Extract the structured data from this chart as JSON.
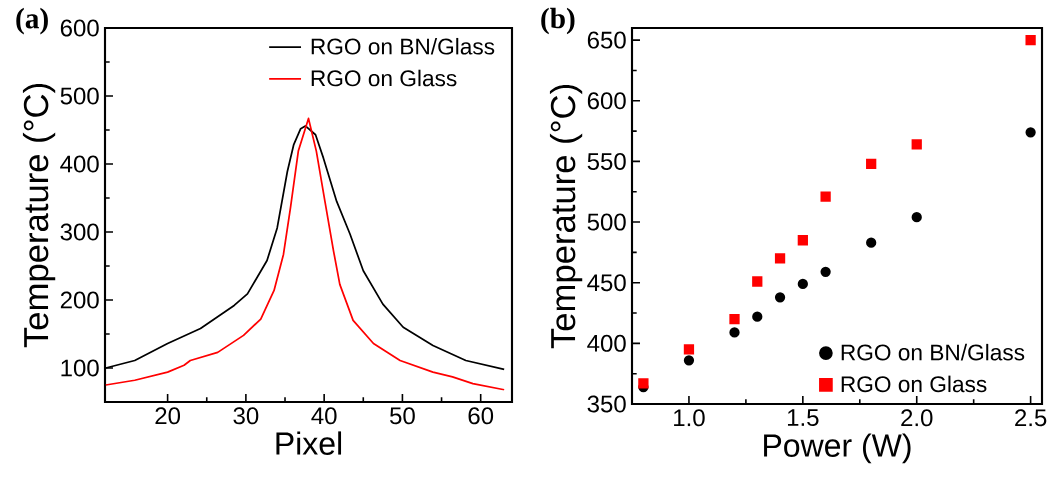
{
  "chart_data": [
    {
      "type": "line",
      "title": "(a)",
      "xlabel": "Pixel",
      "ylabel": "Temperature (°C)",
      "xlim": [
        12,
        64
      ],
      "ylim": [
        50,
        600
      ],
      "xticks": [
        20,
        30,
        40,
        50,
        60
      ],
      "yticks": [
        100,
        200,
        300,
        400,
        500,
        600
      ],
      "legend": "top right",
      "grid": false,
      "series": [
        {
          "name": "RGO on BN/Glass",
          "color": "#000000",
          "x": [
            12.1,
            15.8,
            20,
            24.2,
            28.5,
            30.2,
            32.7,
            34,
            35.3,
            36.1,
            37,
            37.6,
            38.9,
            39.9,
            41.6,
            43.3,
            45,
            47.5,
            50.1,
            53.9,
            58.1,
            63
          ],
          "values": [
            100,
            111,
            136,
            158,
            192,
            209,
            258,
            306,
            389,
            428,
            452,
            456,
            443,
            409,
            345,
            297,
            243,
            194,
            160,
            133,
            111,
            98
          ]
        },
        {
          "name": "RGO on Glass",
          "color": "#ff0000",
          "x": [
            12.1,
            15.8,
            20,
            22.1,
            22.9,
            26.4,
            29.7,
            31.9,
            33.6,
            34.8,
            35.7,
            36.7,
            38,
            39,
            40.1,
            41.2,
            42,
            43.7,
            46.3,
            49.7,
            53.9,
            56.4,
            59,
            63
          ],
          "values": [
            75,
            82,
            94,
            104,
            111,
            123,
            148,
            172,
            214,
            267,
            336,
            419,
            467,
            419,
            345,
            272,
            223,
            170,
            136,
            111,
            94,
            87,
            77,
            68
          ]
        }
      ]
    },
    {
      "type": "scatter",
      "title": "(b)",
      "xlabel": "Power (W)",
      "ylabel": "Temperature (°C)",
      "xlim": [
        0.75,
        2.55
      ],
      "ylim": [
        350,
        660
      ],
      "xticks": [
        {
          "value": 1,
          "label": "1.0"
        },
        1.5,
        {
          "value": 2,
          "label": "2.0"
        },
        2.5
      ],
      "yticks": [
        350,
        400,
        450,
        500,
        550,
        600,
        650
      ],
      "legend": "bottom right",
      "grid": false,
      "series": [
        {
          "name": "RGO on BN/Glass",
          "color": "#000000",
          "marker": "circle",
          "x": [
            0.8,
            1.0,
            1.2,
            1.3,
            1.4,
            1.5,
            1.6,
            1.8,
            2.0,
            2.5
          ],
          "values": [
            364,
            386,
            409,
            422,
            438,
            449,
            459,
            483,
            504,
            574
          ]
        },
        {
          "name": "RGO on Glass",
          "color": "#ff0000",
          "marker": "square",
          "x": [
            0.8,
            1.0,
            1.2,
            1.3,
            1.4,
            1.5,
            1.6,
            1.8,
            2.0,
            2.5
          ],
          "values": [
            367,
            395,
            420,
            451,
            470,
            485,
            521,
            548,
            564,
            650
          ]
        }
      ]
    }
  ]
}
